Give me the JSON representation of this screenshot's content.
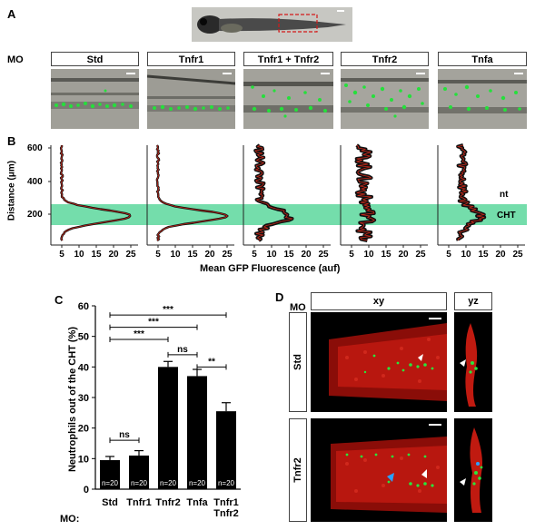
{
  "panel_a": {
    "letter": "A",
    "mo_label": "MO",
    "conditions": [
      "Std",
      "Tnfr1",
      "Tnfr1 + Tnfr2",
      "Tnfr2",
      "Tnfa"
    ]
  },
  "panel_b": {
    "letter": "B",
    "ylabel": "Distance (μm)",
    "xlabel": "Mean GFP Fluorescence (auf)",
    "yticks": [
      "600",
      "400",
      "200"
    ],
    "xticks": [
      "5",
      "10",
      "15",
      "20",
      "25"
    ],
    "labels": {
      "nt": "nt",
      "cht": "CHT"
    }
  },
  "panel_c": {
    "letter": "C",
    "mo_label": "MO:",
    "ns": "ns",
    "sig": [
      "***",
      "***",
      "***",
      "**"
    ]
  },
  "panel_d": {
    "letter": "D",
    "mo_label": "MO",
    "xy": "xy",
    "yz": "yz",
    "rows": [
      "Std",
      "Tnfr2"
    ]
  },
  "colors": {
    "gfp": "#23e03a",
    "cht_band": "#3fd08a",
    "red_stain": "#d81e10",
    "profile_red": "#c8281a"
  },
  "chart_data": {
    "type": "bar",
    "title": "",
    "xlabel": "",
    "ylabel": "Neutrophils out of the CHT (%)",
    "categories": [
      "Std",
      "Tnfr1",
      "Tnfr2",
      "Tnfa",
      "Tnfr1 Tnfr2"
    ],
    "values": [
      9.5,
      11,
      40,
      37,
      25.5
    ],
    "errors": [
      1.2,
      1.6,
      1.8,
      2.2,
      2.8
    ],
    "n_labels": [
      "n=20",
      "n=20",
      "n=20",
      "n=20",
      "n=20"
    ],
    "ylim": [
      0,
      60
    ],
    "yticks": [
      0,
      10,
      20,
      30,
      40,
      50,
      60
    ],
    "grid": false,
    "legend": "none"
  }
}
